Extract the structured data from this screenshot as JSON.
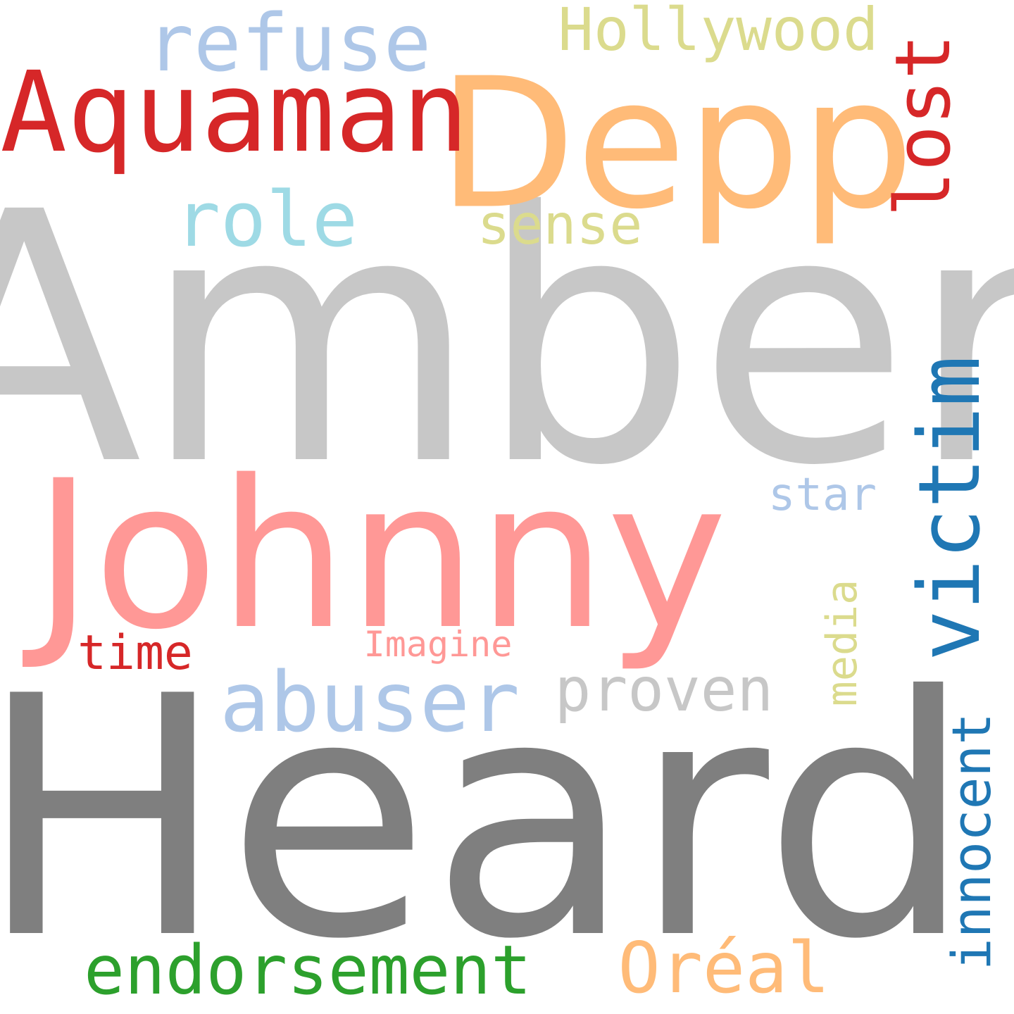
{
  "words": [
    {
      "key": "amber",
      "text": "Amber",
      "color": "#c7c7c7"
    },
    {
      "key": "heard",
      "text": "Heard",
      "color": "#7f7f7f"
    },
    {
      "key": "johnny",
      "text": "Johnny",
      "color": "#ff9896"
    },
    {
      "key": "depp",
      "text": "Depp",
      "color": "#ffbb78"
    },
    {
      "key": "aquaman",
      "text": "Aquaman",
      "color": "#d62728"
    },
    {
      "key": "refuse",
      "text": "refuse",
      "color": "#aec7e8"
    },
    {
      "key": "hollywood",
      "text": "Hollywood",
      "color": "#dbdb8d"
    },
    {
      "key": "lost",
      "text": "lost",
      "color": "#d62728"
    },
    {
      "key": "role",
      "text": "role",
      "color": "#9edae5"
    },
    {
      "key": "sense",
      "text": "sense",
      "color": "#dbdb8d"
    },
    {
      "key": "victim",
      "text": "victim",
      "color": "#1f77b4"
    },
    {
      "key": "star",
      "text": "star",
      "color": "#aec7e8"
    },
    {
      "key": "media",
      "text": "media",
      "color": "#dbdb8d"
    },
    {
      "key": "time",
      "text": "time",
      "color": "#d62728"
    },
    {
      "key": "imagine",
      "text": "Imagine",
      "color": "#ff9896"
    },
    {
      "key": "abuser",
      "text": "abuser",
      "color": "#aec7e8"
    },
    {
      "key": "proven",
      "text": "proven",
      "color": "#c7c7c7"
    },
    {
      "key": "innocent",
      "text": "innocent",
      "color": "#1f77b4"
    },
    {
      "key": "endorsement",
      "text": "endorsement",
      "color": "#2ca02c"
    },
    {
      "key": "oreal",
      "text": "Oréal",
      "color": "#ffbb78"
    }
  ]
}
